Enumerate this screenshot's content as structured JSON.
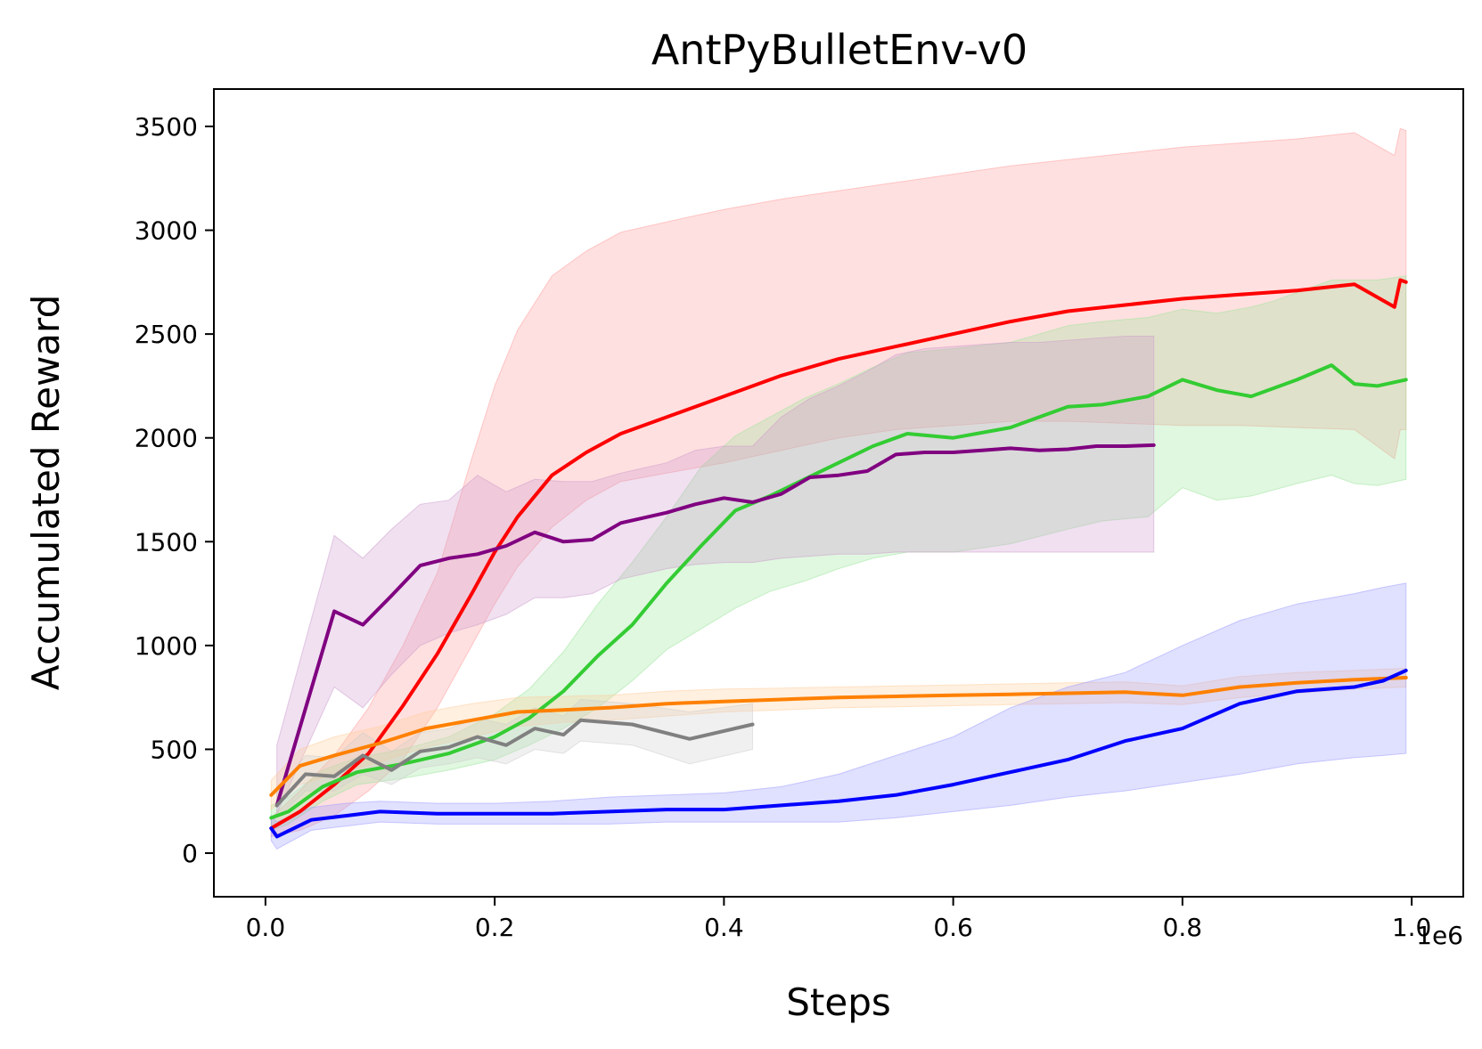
{
  "chart_data": {
    "type": "line",
    "title": "AntPyBulletEnv-v0",
    "xlabel": "Steps",
    "ylabel": "Accumulated Reward",
    "x_offset_label": "1e6",
    "xlim": [
      -0.045,
      1.045
    ],
    "ylim": [
      -210,
      3680
    ],
    "xticks": [
      0.0,
      0.2,
      0.4,
      0.6,
      0.8,
      1.0
    ],
    "xtick_labels": [
      "0.0",
      "0.2",
      "0.4",
      "0.6",
      "0.8",
      "1.0"
    ],
    "yticks": [
      0,
      500,
      1000,
      1500,
      2000,
      2500,
      3000,
      3500
    ],
    "ytick_labels": [
      "0",
      "500",
      "1000",
      "1500",
      "2000",
      "2500",
      "3000",
      "3500"
    ],
    "grid": false,
    "legend": "none",
    "series": [
      {
        "name": "red",
        "color": "#ff0000",
        "band_color": "#ff9999",
        "x": [
          0.005,
          0.03,
          0.06,
          0.09,
          0.12,
          0.15,
          0.18,
          0.2,
          0.22,
          0.25,
          0.28,
          0.31,
          0.35,
          0.4,
          0.45,
          0.5,
          0.55,
          0.6,
          0.65,
          0.7,
          0.75,
          0.8,
          0.85,
          0.9,
          0.95,
          0.985,
          0.99,
          0.995
        ],
        "y": [
          120,
          200,
          330,
          480,
          710,
          960,
          1250,
          1450,
          1620,
          1820,
          1930,
          2020,
          2100,
          2200,
          2300,
          2380,
          2440,
          2500,
          2560,
          2610,
          2640,
          2670,
          2690,
          2710,
          2740,
          2630,
          2760,
          2750
        ],
        "lower": [
          80,
          110,
          180,
          300,
          450,
          700,
          1000,
          1200,
          1380,
          1570,
          1700,
          1790,
          1830,
          1880,
          1940,
          2000,
          2040,
          2060,
          2080,
          2080,
          2070,
          2060,
          2060,
          2050,
          2040,
          1900,
          2040,
          2040
        ],
        "upper": [
          170,
          300,
          470,
          700,
          1000,
          1350,
          1900,
          2250,
          2520,
          2780,
          2900,
          2990,
          3040,
          3100,
          3150,
          3190,
          3230,
          3270,
          3310,
          3340,
          3370,
          3400,
          3420,
          3440,
          3470,
          3360,
          3490,
          3480
        ]
      },
      {
        "name": "green",
        "color": "#33cc33",
        "band_color": "#99e699",
        "x": [
          0.005,
          0.02,
          0.05,
          0.08,
          0.12,
          0.16,
          0.2,
          0.23,
          0.26,
          0.29,
          0.32,
          0.35,
          0.38,
          0.41,
          0.44,
          0.47,
          0.5,
          0.53,
          0.56,
          0.6,
          0.65,
          0.7,
          0.73,
          0.77,
          0.8,
          0.83,
          0.86,
          0.88,
          0.9,
          0.93,
          0.95,
          0.97,
          0.995
        ],
        "y": [
          170,
          200,
          320,
          390,
          430,
          480,
          560,
          650,
          780,
          950,
          1100,
          1300,
          1480,
          1650,
          1720,
          1800,
          1880,
          1960,
          2020,
          2000,
          2050,
          2150,
          2160,
          2200,
          2280,
          2230,
          2200,
          2240,
          2280,
          2350,
          2260,
          2250,
          2280
        ],
        "lower": [
          110,
          140,
          250,
          330,
          360,
          400,
          450,
          520,
          600,
          700,
          830,
          980,
          1080,
          1180,
          1260,
          1310,
          1370,
          1420,
          1450,
          1450,
          1490,
          1560,
          1600,
          1620,
          1760,
          1700,
          1720,
          1750,
          1780,
          1820,
          1780,
          1770,
          1800
        ],
        "upper": [
          230,
          270,
          400,
          460,
          500,
          560,
          670,
          790,
          970,
          1200,
          1400,
          1620,
          1860,
          2010,
          2100,
          2190,
          2260,
          2340,
          2410,
          2430,
          2460,
          2540,
          2560,
          2580,
          2620,
          2600,
          2630,
          2660,
          2700,
          2760,
          2760,
          2760,
          2780
        ]
      },
      {
        "name": "purple",
        "color": "#800080",
        "band_color": "#cc99cc",
        "x": [
          0.01,
          0.06,
          0.085,
          0.11,
          0.135,
          0.16,
          0.185,
          0.21,
          0.235,
          0.26,
          0.285,
          0.31,
          0.35,
          0.375,
          0.4,
          0.425,
          0.45,
          0.475,
          0.5,
          0.525,
          0.55,
          0.575,
          0.6,
          0.625,
          0.65,
          0.675,
          0.7,
          0.725,
          0.75,
          0.775
        ],
        "y": [
          230,
          1165,
          1100,
          1240,
          1385,
          1420,
          1440,
          1480,
          1545,
          1500,
          1510,
          1590,
          1640,
          1680,
          1710,
          1690,
          1730,
          1810,
          1820,
          1840,
          1920,
          1930,
          1930,
          1940,
          1950,
          1940,
          1945,
          1960,
          1960,
          1965
        ],
        "lower": [
          190,
          800,
          700,
          860,
          1000,
          1060,
          1100,
          1150,
          1230,
          1230,
          1250,
          1320,
          1370,
          1390,
          1400,
          1400,
          1420,
          1430,
          1440,
          1440,
          1450,
          1450,
          1450,
          1450,
          1450,
          1450,
          1450,
          1450,
          1450,
          1450
        ],
        "upper": [
          520,
          1530,
          1420,
          1560,
          1680,
          1700,
          1820,
          1740,
          1800,
          1790,
          1790,
          1830,
          1880,
          1940,
          1960,
          1960,
          2100,
          2190,
          2250,
          2320,
          2400,
          2430,
          2440,
          2450,
          2460,
          2460,
          2470,
          2480,
          2490,
          2490
        ]
      },
      {
        "name": "orange",
        "color": "#ff8000",
        "band_color": "#ffcc99",
        "x": [
          0.005,
          0.03,
          0.06,
          0.1,
          0.14,
          0.18,
          0.22,
          0.26,
          0.3,
          0.35,
          0.4,
          0.45,
          0.5,
          0.55,
          0.6,
          0.65,
          0.7,
          0.75,
          0.8,
          0.85,
          0.9,
          0.95,
          0.995
        ],
        "y": [
          280,
          420,
          470,
          530,
          600,
          640,
          680,
          690,
          700,
          720,
          730,
          740,
          750,
          755,
          760,
          765,
          770,
          775,
          760,
          800,
          820,
          835,
          845
        ],
        "lower": [
          210,
          330,
          380,
          440,
          510,
          560,
          610,
          630,
          640,
          660,
          680,
          690,
          700,
          705,
          710,
          715,
          720,
          725,
          715,
          750,
          770,
          790,
          800
        ],
        "upper": [
          350,
          500,
          560,
          610,
          680,
          720,
          750,
          755,
          760,
          780,
          790,
          795,
          800,
          805,
          810,
          815,
          820,
          825,
          805,
          850,
          870,
          880,
          890
        ]
      },
      {
        "name": "gray",
        "color": "#808080",
        "band_color": "#cccccc",
        "x": [
          0.01,
          0.035,
          0.06,
          0.085,
          0.11,
          0.135,
          0.16,
          0.185,
          0.21,
          0.235,
          0.26,
          0.275,
          0.32,
          0.37,
          0.425
        ],
        "y": [
          230,
          380,
          370,
          470,
          400,
          490,
          510,
          560,
          520,
          600,
          570,
          640,
          620,
          550,
          620
        ],
        "lower": [
          170,
          300,
          300,
          380,
          330,
          410,
          430,
          460,
          430,
          500,
          480,
          540,
          520,
          430,
          500
        ],
        "upper": [
          300,
          470,
          460,
          580,
          490,
          580,
          600,
          650,
          620,
          700,
          660,
          740,
          720,
          680,
          720
        ]
      },
      {
        "name": "blue",
        "color": "#0000ff",
        "band_color": "#9999ff",
        "x": [
          0.005,
          0.01,
          0.04,
          0.07,
          0.1,
          0.15,
          0.2,
          0.25,
          0.3,
          0.35,
          0.4,
          0.45,
          0.5,
          0.55,
          0.6,
          0.65,
          0.7,
          0.75,
          0.8,
          0.85,
          0.9,
          0.95,
          0.975,
          0.995
        ],
        "y": [
          120,
          80,
          160,
          180,
          200,
          190,
          190,
          190,
          200,
          210,
          210,
          230,
          250,
          280,
          330,
          390,
          450,
          540,
          600,
          720,
          780,
          800,
          830,
          880
        ],
        "lower": [
          60,
          20,
          110,
          130,
          150,
          140,
          140,
          140,
          140,
          150,
          150,
          150,
          150,
          170,
          200,
          230,
          270,
          300,
          340,
          380,
          430,
          460,
          470,
          480
        ],
        "upper": [
          180,
          150,
          220,
          240,
          250,
          240,
          240,
          250,
          270,
          280,
          290,
          320,
          380,
          470,
          560,
          700,
          800,
          870,
          1000,
          1120,
          1200,
          1250,
          1280,
          1300
        ]
      }
    ]
  }
}
